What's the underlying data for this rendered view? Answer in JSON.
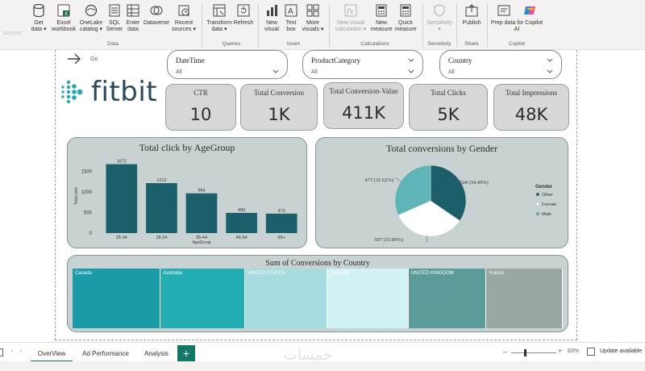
{
  "ribbon": {
    "ghost_label": "puestor",
    "buttons": [
      {
        "id": "get-data",
        "label": "Get\ndata ▾",
        "icon": "database-icon"
      },
      {
        "id": "excel-workbook",
        "label": "Excel\nworkbook",
        "icon": "excel-icon"
      },
      {
        "id": "onelake-catalog",
        "label": "OneLake\ncatalog ▾",
        "icon": "onelake-icon"
      },
      {
        "id": "sql-server",
        "label": "SQL\nServer",
        "icon": "sql-icon"
      },
      {
        "id": "enter-data",
        "label": "Enter\ndata",
        "icon": "table-icon"
      },
      {
        "id": "dataverse",
        "label": "Dataverse",
        "icon": "dataverse-icon"
      },
      {
        "id": "recent-sources",
        "label": "Recent\nsources ▾",
        "icon": "recent-icon"
      },
      {
        "id": "transform-data",
        "label": "Transform\ndata ▾",
        "icon": "transform-icon"
      },
      {
        "id": "refresh",
        "label": "Refresh",
        "icon": "refresh-icon"
      },
      {
        "id": "new-visual",
        "label": "New\nvisual",
        "icon": "chart-icon"
      },
      {
        "id": "text-box",
        "label": "Text\nbox",
        "icon": "textbox-icon"
      },
      {
        "id": "more-visuals",
        "label": "More\nvisuals ▾",
        "icon": "visuals-icon"
      },
      {
        "id": "new-visual-calc",
        "label": "New visual\ncalculation ▾",
        "icon": "fx-icon"
      },
      {
        "id": "new-measure",
        "label": "New\nmeasure",
        "icon": "calculator-icon"
      },
      {
        "id": "quick-measure",
        "label": "Quick\nmeasure",
        "icon": "calculator-icon"
      },
      {
        "id": "sensitivity",
        "label": "Sensitivity\n▾",
        "icon": "shield-icon"
      },
      {
        "id": "publish",
        "label": "Publish",
        "icon": "publish-icon"
      },
      {
        "id": "prep-data-copilot",
        "label": "Prep data for Copilot\nAI",
        "icon": "prep-icon"
      }
    ],
    "groups": {
      "data": "Data",
      "queries": "Queries",
      "insert": "Insert",
      "calculations": "Calculations",
      "sensitivity": "Sensitivity",
      "share": "Share",
      "copilot": "Copilot"
    }
  },
  "report": {
    "go_label": "Go",
    "logo_text": "fitbit",
    "slicers": [
      {
        "title": "DateTime",
        "value": "All"
      },
      {
        "title": "ProductCategory",
        "value": "All"
      },
      {
        "title": "Country",
        "value": "All"
      }
    ],
    "kpis": [
      {
        "title": "CTR",
        "value": "10"
      },
      {
        "title": "Total Conversion",
        "value": "1K"
      },
      {
        "title": "Total Conversion-Value",
        "value": "411K"
      },
      {
        "title": "Total Clicks",
        "value": "5K"
      },
      {
        "title": "Total Impressions",
        "value": "48K"
      }
    ]
  },
  "chart_data": [
    {
      "type": "bar",
      "title": "Total click by AgeGroup",
      "xlabel": "AgeGroup",
      "ylabel": "Total click",
      "categories": [
        "25-34",
        "18-24",
        "35-44",
        "45-54",
        "55+"
      ],
      "values": [
        1672,
        1212,
        964,
        490,
        472
      ],
      "yticks": [
        0,
        500,
        1000,
        1500
      ],
      "ylim": [
        0,
        1800
      ],
      "color": "#1b5f6b"
    },
    {
      "type": "pie",
      "title": "Total conversions by Gender",
      "legend_title": "Gender",
      "slices": [
        {
          "name": "Other",
          "value": 516,
          "label": "516 (34.49%)",
          "color": "#1c5f6b"
        },
        {
          "name": "Female",
          "value": 507,
          "label": "507 (33.89%)",
          "color": "#ffffff"
        },
        {
          "name": "Male",
          "value": 473,
          "label": "473 (31.62%)",
          "color": "#5fb4b7"
        }
      ]
    },
    {
      "type": "heatmap",
      "title": "Sum of Conversions by Country",
      "cells": [
        {
          "name": "Canada",
          "color": "#1b9aa8"
        },
        {
          "name": "Australia",
          "color": "#22aeb3"
        },
        {
          "name": "UNITED STATES",
          "color": "#a6dbe0"
        },
        {
          "name": "Germany",
          "color": "#d2f3f5"
        },
        {
          "name": "UNITED KINGDOM",
          "color": "#5b9c9a"
        },
        {
          "name": "France",
          "color": "#9aa8a4"
        }
      ]
    }
  ],
  "tabs": [
    {
      "label": "OverView",
      "active": true
    },
    {
      "label": "Ad Performance",
      "active": false
    },
    {
      "label": "Analysis",
      "active": false
    }
  ],
  "add_tab_label": "+",
  "status": {
    "zoom": "83%",
    "update_text": "Update available"
  },
  "watermark": "خمسات"
}
